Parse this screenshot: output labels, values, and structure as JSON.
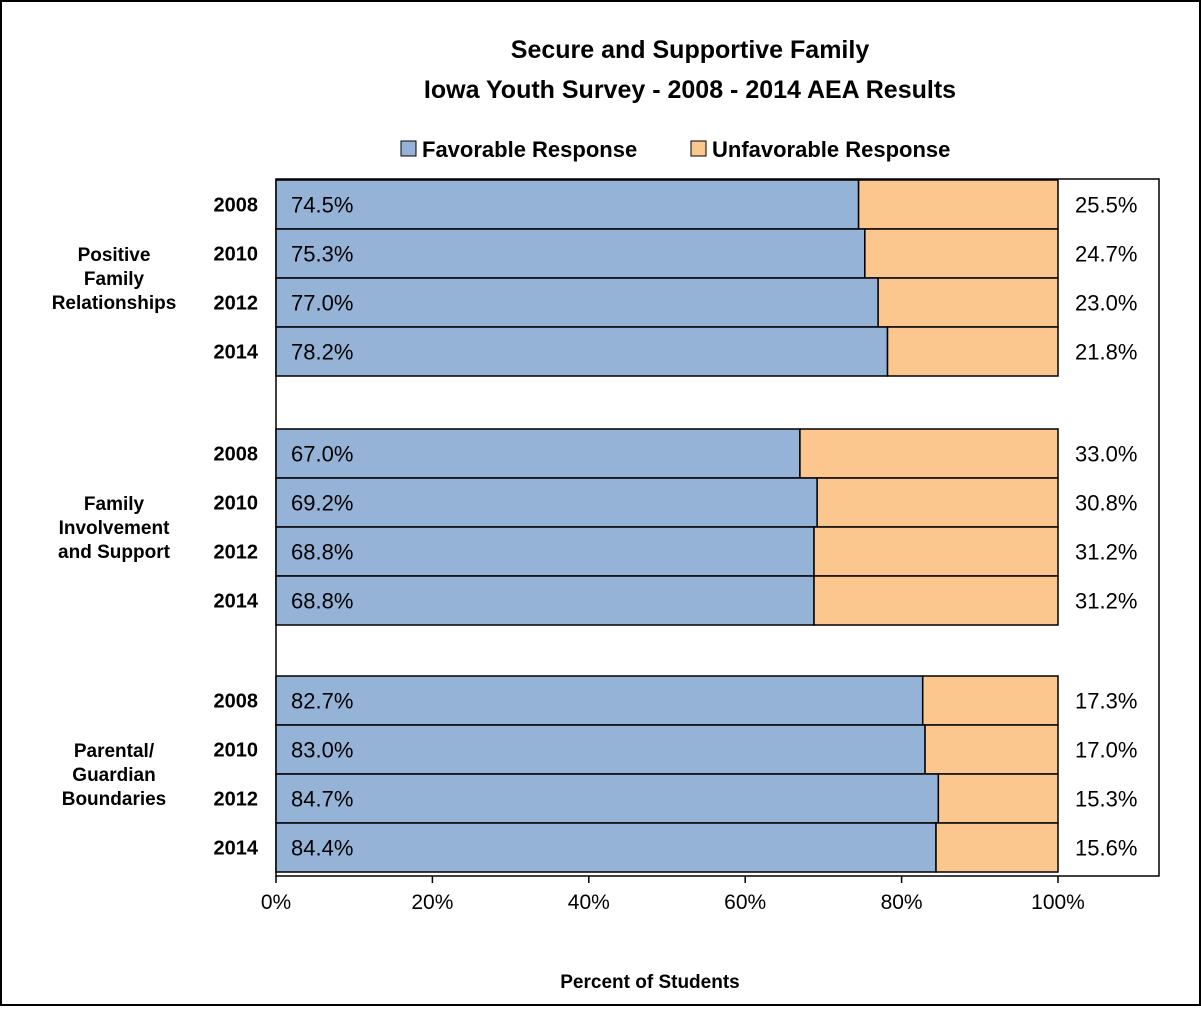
{
  "chart_data": {
    "type": "bar",
    "orientation": "horizontal",
    "stacked": "percent",
    "title": "Secure and Supportive Family",
    "subtitle": "Iowa Youth Survey - 2008 - 2014 AEA Results",
    "xlabel": "Percent of Students",
    "ylabel": "",
    "xlim": [
      0,
      100
    ],
    "x_ticks": [
      "0%",
      "20%",
      "40%",
      "60%",
      "80%",
      "100%"
    ],
    "legend_position": "top",
    "series": [
      {
        "name": "Favorable Response",
        "color": "#95b3d7"
      },
      {
        "name": "Unfavorable Response",
        "color": "#fcc68f"
      }
    ],
    "groups": [
      {
        "label": [
          "Positive",
          "Family",
          "Relationships"
        ],
        "rows": [
          {
            "year": "2008",
            "favorable": 74.5,
            "unfavorable": 25.5,
            "favorable_label": "74.5%",
            "unfavorable_label": "25.5%"
          },
          {
            "year": "2010",
            "favorable": 75.3,
            "unfavorable": 24.7,
            "favorable_label": "75.3%",
            "unfavorable_label": "24.7%"
          },
          {
            "year": "2012",
            "favorable": 77.0,
            "unfavorable": 23.0,
            "favorable_label": "77.0%",
            "unfavorable_label": "23.0%"
          },
          {
            "year": "2014",
            "favorable": 78.2,
            "unfavorable": 21.8,
            "favorable_label": "78.2%",
            "unfavorable_label": "21.8%"
          }
        ]
      },
      {
        "label": [
          "Family",
          "Involvement",
          "and Support"
        ],
        "rows": [
          {
            "year": "2008",
            "favorable": 67.0,
            "unfavorable": 33.0,
            "favorable_label": "67.0%",
            "unfavorable_label": "33.0%"
          },
          {
            "year": "2010",
            "favorable": 69.2,
            "unfavorable": 30.8,
            "favorable_label": "69.2%",
            "unfavorable_label": "30.8%"
          },
          {
            "year": "2012",
            "favorable": 68.8,
            "unfavorable": 31.2,
            "favorable_label": "68.8%",
            "unfavorable_label": "31.2%"
          },
          {
            "year": "2014",
            "favorable": 68.8,
            "unfavorable": 31.2,
            "favorable_label": "68.8%",
            "unfavorable_label": "31.2%"
          }
        ]
      },
      {
        "label": [
          "Parental/",
          "Guardian",
          "Boundaries"
        ],
        "rows": [
          {
            "year": "2008",
            "favorable": 82.7,
            "unfavorable": 17.3,
            "favorable_label": "82.7%",
            "unfavorable_label": "17.3%"
          },
          {
            "year": "2010",
            "favorable": 83.0,
            "unfavorable": 17.0,
            "favorable_label": "83.0%",
            "unfavorable_label": "17.0%"
          },
          {
            "year": "2012",
            "favorable": 84.7,
            "unfavorable": 15.3,
            "favorable_label": "84.7%",
            "unfavorable_label": "15.3%"
          },
          {
            "year": "2014",
            "favorable": 84.4,
            "unfavorable": 15.6,
            "favorable_label": "84.4%",
            "unfavorable_label": "15.6%"
          }
        ]
      }
    ]
  }
}
